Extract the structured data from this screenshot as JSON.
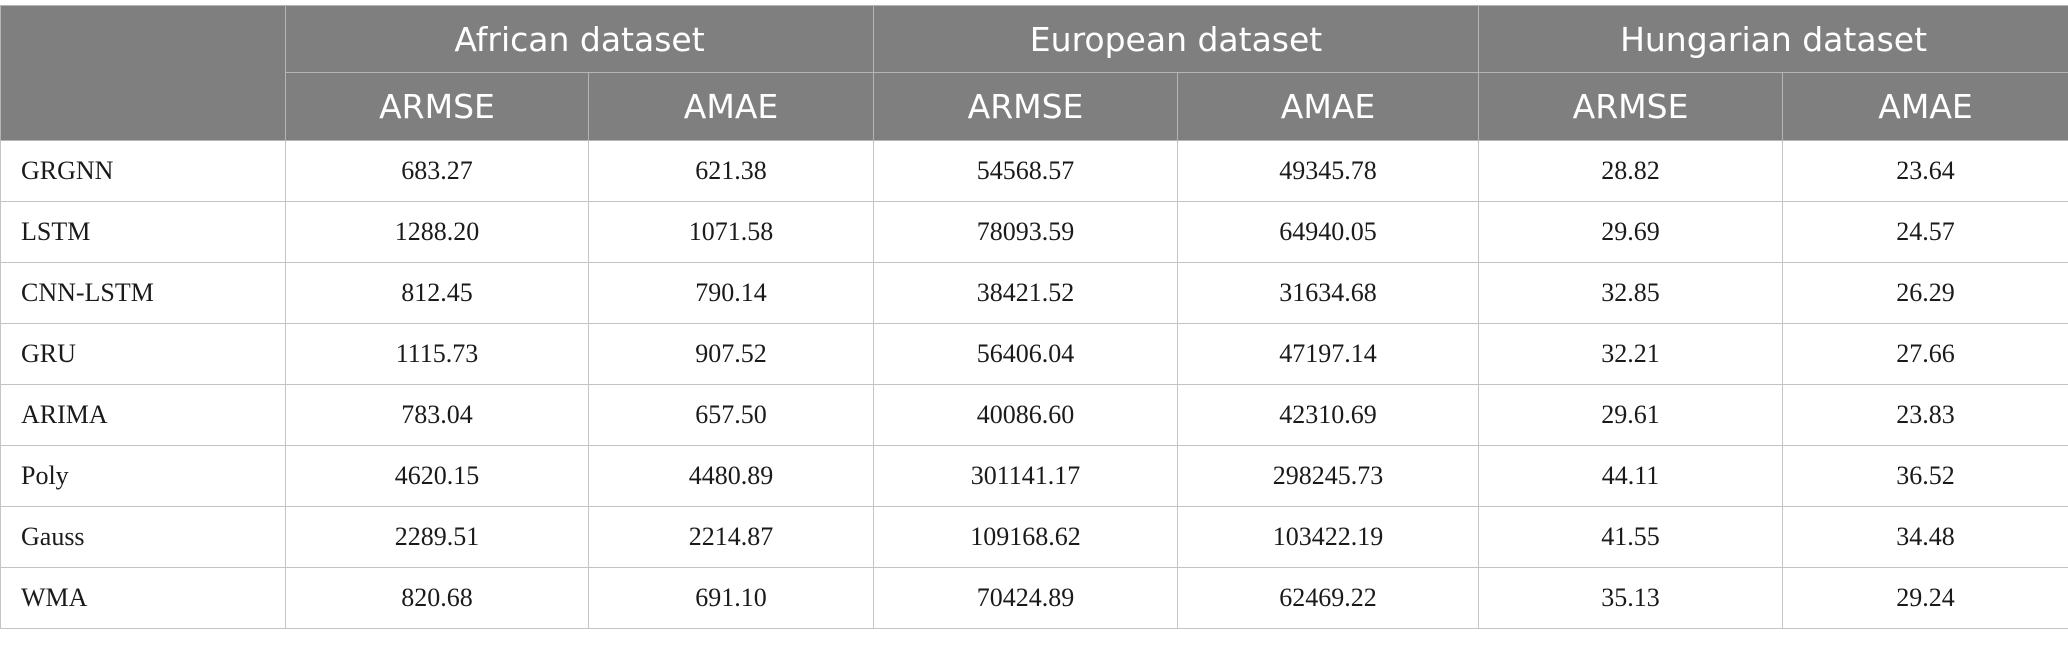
{
  "table": {
    "groups": [
      {
        "label": "African dataset"
      },
      {
        "label": "European dataset"
      },
      {
        "label": "Hungarian dataset"
      }
    ],
    "metrics": [
      "ARMSE",
      "AMAE",
      "ARMSE",
      "AMAE",
      "ARMSE",
      "AMAE"
    ],
    "rows": [
      {
        "model": "GRGNN",
        "values": [
          "683.27",
          "621.38",
          "54568.57",
          "49345.78",
          "28.82",
          "23.64"
        ]
      },
      {
        "model": "LSTM",
        "values": [
          "1288.20",
          "1071.58",
          "78093.59",
          "64940.05",
          "29.69",
          "24.57"
        ]
      },
      {
        "model": "CNN-LSTM",
        "values": [
          "812.45",
          "790.14",
          "38421.52",
          "31634.68",
          "32.85",
          "26.29"
        ]
      },
      {
        "model": "GRU",
        "values": [
          "1115.73",
          "907.52",
          "56406.04",
          "47197.14",
          "32.21",
          "27.66"
        ]
      },
      {
        "model": "ARIMA",
        "values": [
          "783.04",
          "657.50",
          "40086.60",
          "42310.69",
          "29.61",
          "23.83"
        ]
      },
      {
        "model": "Poly",
        "values": [
          "4620.15",
          "4480.89",
          "301141.17",
          "298245.73",
          "44.11",
          "36.52"
        ]
      },
      {
        "model": "Gauss",
        "values": [
          "2289.51",
          "2214.87",
          "109168.62",
          "103422.19",
          "41.55",
          "34.48"
        ]
      },
      {
        "model": "WMA",
        "values": [
          "820.68",
          "691.10",
          "70424.89",
          "62469.22",
          "35.13",
          "29.24"
        ]
      }
    ]
  },
  "colors": {
    "header_bg": "#7e7f7e",
    "header_text": "#ffffff",
    "grid_line": "#c4c4c4"
  }
}
